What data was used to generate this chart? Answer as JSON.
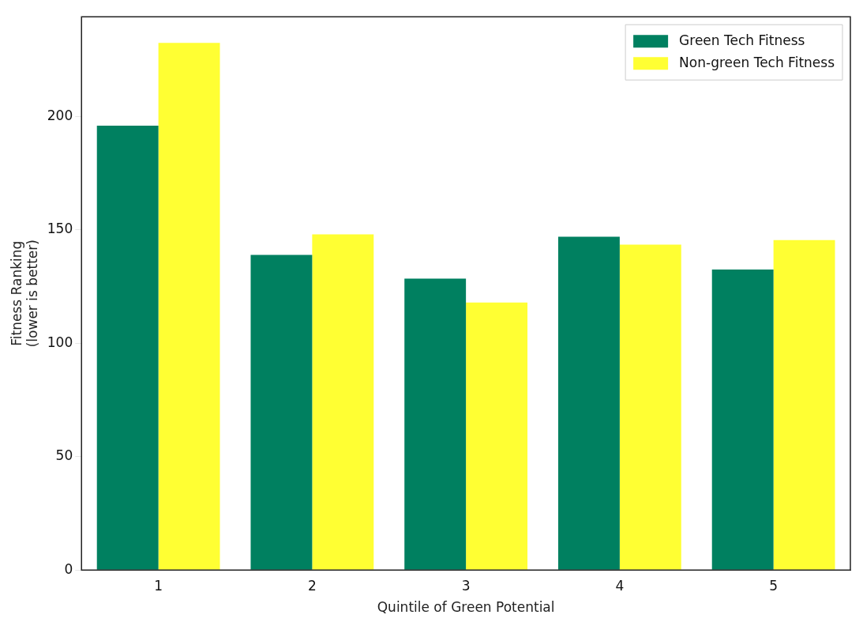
{
  "chart_data": {
    "type": "bar",
    "xlabel": "Quintile of Green Potential",
    "ylabel": "Fitness Ranking\n(lower is better)",
    "categories": [
      "1",
      "2",
      "3",
      "4",
      "5"
    ],
    "series": [
      {
        "name": "Green Tech Fitness",
        "color": "#008060",
        "values": [
          196,
          139,
          128.5,
          147,
          132.5
        ]
      },
      {
        "name": "Non-green Tech Fitness",
        "color": "#ffff33",
        "values": [
          232.5,
          148,
          118,
          143.5,
          145.5
        ]
      }
    ],
    "ylim": [
      0,
      244
    ],
    "yticks": [
      0,
      50,
      100,
      150,
      200
    ],
    "grid": false,
    "legend": "top right"
  }
}
